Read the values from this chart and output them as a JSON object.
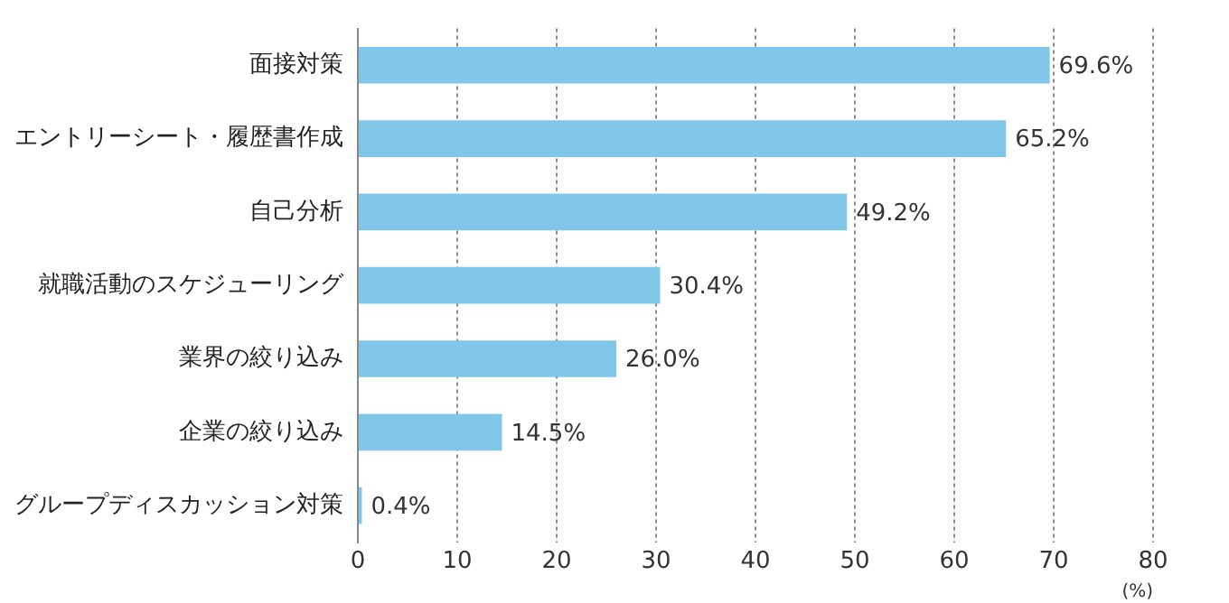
{
  "chart_data": {
    "type": "bar",
    "orientation": "horizontal",
    "categories": [
      "面接対策",
      "エントリーシート・履歴書作成",
      "自己分析",
      "就職活動のスケジューリング",
      "業界の絞り込み",
      "企業の絞り込み",
      "グループディスカッション対策"
    ],
    "values": [
      69.6,
      65.2,
      49.2,
      30.4,
      26.0,
      14.5,
      0.4
    ],
    "value_labels": [
      "69.6%",
      "65.2%",
      "49.2%",
      "30.4%",
      "26.0%",
      "14.5%",
      "0.4%"
    ],
    "color": "#7fc6e8",
    "xlabel": "(%)",
    "xlim": [
      0,
      80
    ],
    "xticks": [
      0,
      10,
      20,
      30,
      40,
      50,
      60,
      70,
      80
    ],
    "grid": "x",
    "legend": false
  }
}
